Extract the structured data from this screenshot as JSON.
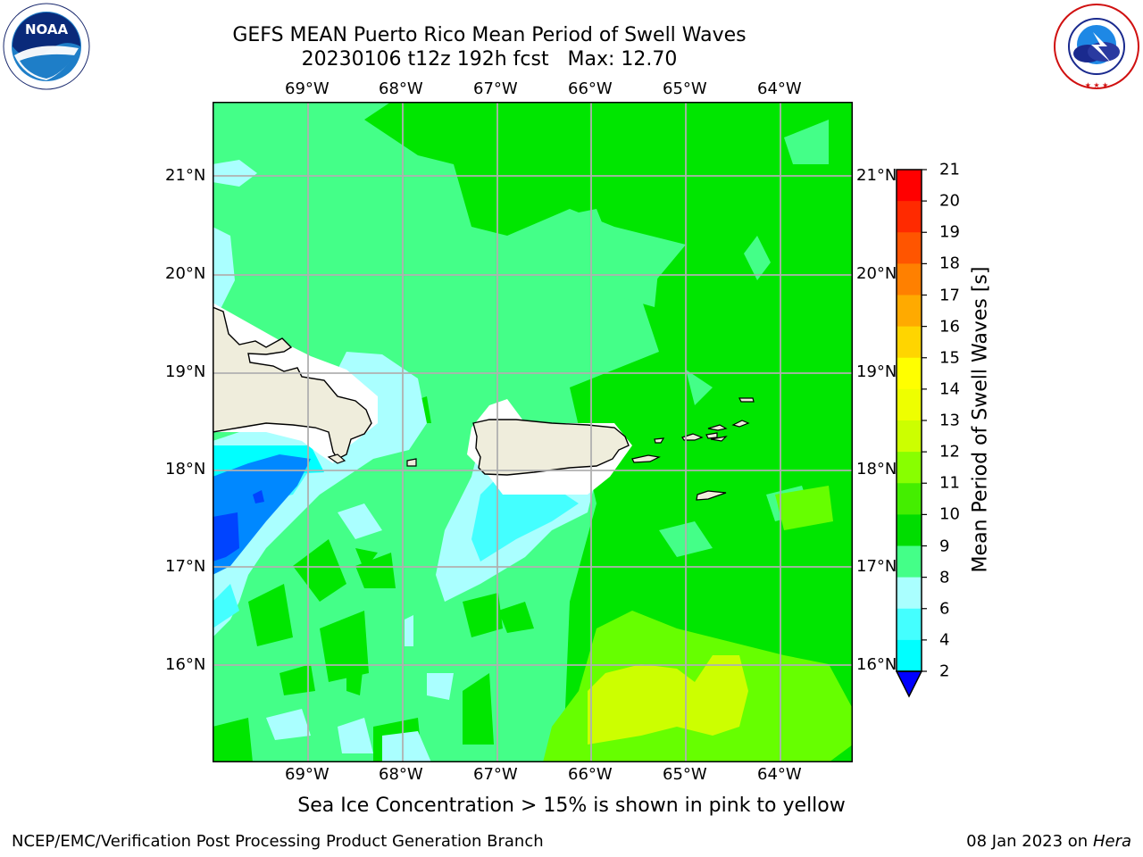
{
  "header": {
    "title_line1": "GEFS MEAN Puerto Rico Mean Period of Swell Waves",
    "title_line2": "20230106 t12z 192h fcst   Max: 12.70"
  },
  "logos": {
    "left": "noaa-logo",
    "right": "nws-logo",
    "left_text": "NOAA",
    "left_ring_text": "NATIONAL OCEANIC AND ATMOSPHERIC ADMINISTRATION · U.S. DEPARTMENT OF COMMERCE",
    "right_ring_text": "NATIONAL WEATHER SERVICE"
  },
  "map": {
    "lon_labels": [
      "69°W",
      "68°W",
      "67°W",
      "66°W",
      "65°W",
      "64°W"
    ],
    "lat_labels": [
      "21°N",
      "20°N",
      "19°N",
      "18°N",
      "17°N",
      "16°N"
    ],
    "colors": {
      "land": "#efeddc",
      "ice_white": "#ffffff",
      "c2": "#0044ff",
      "c4": "#0088ff",
      "c6": "#00ffff",
      "c8": "#44ffff",
      "c9": "#aaffff",
      "c10": "#44ff88",
      "c11": "#00e600",
      "c12": "#66ff00",
      "c13": "#ccff00",
      "grid": "#b0b0b0"
    }
  },
  "colorbar": {
    "label": "Mean Period of Swell Waves [s]",
    "ticks": [
      "21",
      "20",
      "19",
      "18",
      "17",
      "16",
      "15",
      "14",
      "13",
      "12",
      "11",
      "10",
      "9",
      "8",
      "6",
      "4",
      "2"
    ],
    "colors": [
      "#ff0000",
      "#ff2a00",
      "#ff5500",
      "#ff8000",
      "#ffaa00",
      "#ffd500",
      "#ffff00",
      "#eeff00",
      "#ccff00",
      "#88ff00",
      "#44ee00",
      "#00dd00",
      "#44ff88",
      "#aaffff",
      "#44ffff",
      "#00ffff",
      "#0088ff",
      "#0000ff"
    ]
  },
  "caption": "Sea Ice Concentration > 15% is shown in pink to yellow",
  "footer": {
    "left": "NCEP/EMC/Verification Post Processing Product Generation Branch",
    "right_date": "08 Jan 2023 on ",
    "right_host": "Hera"
  }
}
